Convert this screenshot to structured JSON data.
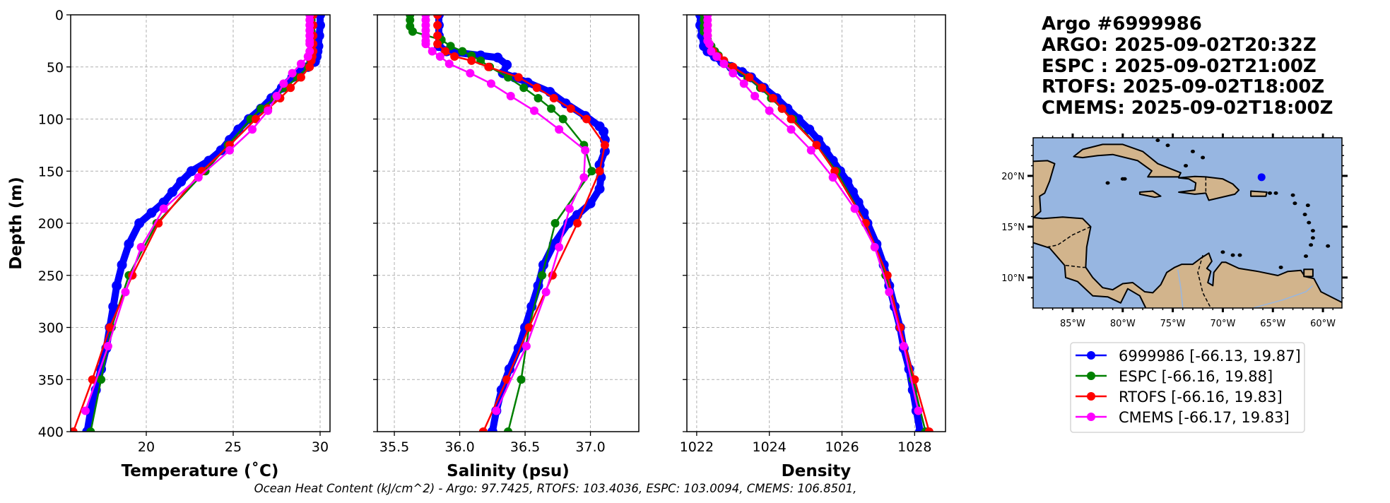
{
  "title": {
    "lines": [
      "Argo #6999986",
      "ARGO: 2025-09-02T20:32Z",
      "ESPC : 2025-09-02T21:00Z",
      "RTOFS: 2025-09-02T18:00Z",
      "CMEMS: 2025-09-02T18:00Z"
    ]
  },
  "caption": "Ocean Heat Content (kJ/cm^2) - Argo: 97.7425,  RTOFS: 103.4036,  ESPC: 103.0094,  CMEMS: 106.8501,",
  "colors": {
    "argo": "#0000ff",
    "espc": "#008000",
    "rtofs": "#ff0000",
    "cmems": "#ff00ff",
    "ocean": "#97b6e1",
    "land": "#d2b48c",
    "grid": "#b0b0b0"
  },
  "legend": {
    "placement": "below-map",
    "items": [
      {
        "label": "6999986 [-66.13, 19.87]",
        "series": "argo"
      },
      {
        "label": "ESPC [-66.16, 19.88]",
        "series": "espc"
      },
      {
        "label": "RTOFS [-66.16, 19.83]",
        "series": "rtofs"
      },
      {
        "label": "CMEMS [-66.17, 19.83]",
        "series": "cmems"
      }
    ]
  },
  "map": {
    "lon_range": [
      -88.95,
      -58.1
    ],
    "lat_range": [
      7.0,
      23.75
    ],
    "lon_ticks": [
      -85,
      -80,
      -75,
      -70,
      -65,
      -60
    ],
    "lon_tick_labels": [
      "85°W",
      "80°W",
      "75°W",
      "70°W",
      "65°W",
      "60°W"
    ],
    "lat_ticks": [
      10,
      15,
      20
    ],
    "lat_tick_labels": [
      "10°N",
      "15°N",
      "20°N"
    ],
    "float_position": {
      "lon": -66.13,
      "lat": 19.87
    }
  },
  "chart_data": [
    {
      "type": "line",
      "xlabel": "Temperature (˚C)",
      "ylabel": "Depth (m)",
      "xlim": [
        15.65,
        30.57
      ],
      "ylim": [
        400,
        0
      ],
      "xticks": [
        20,
        25,
        30
      ],
      "xtick_labels": [
        "20",
        "25",
        "30"
      ],
      "yticks": [
        0,
        50,
        100,
        150,
        200,
        250,
        300,
        350,
        400
      ],
      "ytick_labels": [
        "0",
        "50",
        "100",
        "150",
        "200",
        "250",
        "300",
        "350",
        "400"
      ],
      "grid": true,
      "series": [
        {
          "name": "argo",
          "depth": [
            0,
            10,
            20,
            30,
            35,
            40,
            45,
            50,
            55,
            60,
            70,
            80,
            90,
            100,
            110,
            120,
            130,
            140,
            150,
            160,
            170,
            180,
            190,
            200,
            220,
            240,
            260,
            280,
            300,
            320,
            340,
            360,
            380,
            400
          ],
          "values": [
            30.0,
            30.0,
            29.95,
            29.9,
            29.85,
            29.8,
            29.7,
            29.3,
            28.8,
            28.4,
            27.8,
            27.2,
            26.6,
            25.9,
            25.3,
            24.8,
            24.3,
            23.6,
            22.6,
            22.0,
            21.5,
            21.0,
            20.3,
            19.6,
            19.0,
            18.6,
            18.3,
            18.1,
            17.9,
            17.7,
            17.4,
            17.1,
            16.8,
            16.6
          ]
        },
        {
          "name": "espc",
          "depth": [
            0,
            5,
            11,
            16,
            24,
            30,
            35,
            39,
            44,
            50,
            60,
            70,
            80,
            90,
            100,
            125,
            150,
            200,
            250,
            300,
            350,
            400
          ],
          "values": [
            29.5,
            29.5,
            29.5,
            29.5,
            29.5,
            29.5,
            29.5,
            29.5,
            29.45,
            29.3,
            28.7,
            28.0,
            27.4,
            26.6,
            26.0,
            24.7,
            23.4,
            20.6,
            19.0,
            18.0,
            17.4,
            16.8
          ]
        },
        {
          "name": "rtofs",
          "depth": [
            0,
            10,
            20,
            28,
            35,
            40,
            44,
            50,
            60,
            70,
            80,
            90,
            100,
            125,
            150,
            200,
            250,
            300,
            350,
            400
          ],
          "values": [
            29.6,
            29.6,
            29.6,
            29.6,
            29.6,
            29.55,
            29.5,
            29.4,
            28.9,
            28.3,
            27.7,
            27.0,
            26.3,
            24.8,
            23.2,
            20.7,
            19.2,
            17.9,
            16.9,
            15.8
          ]
        },
        {
          "name": "cmems",
          "depth": [
            0,
            5,
            10,
            15,
            20,
            25,
            28,
            35,
            40,
            47,
            56,
            66,
            78,
            92,
            110,
            130,
            156,
            186,
            223,
            266,
            318,
            380
          ],
          "values": [
            29.4,
            29.4,
            29.4,
            29.4,
            29.4,
            29.4,
            29.4,
            29.4,
            29.3,
            28.9,
            28.4,
            27.9,
            27.5,
            27.0,
            26.1,
            24.8,
            23.0,
            21.0,
            19.7,
            18.8,
            17.8,
            16.5
          ]
        }
      ]
    },
    {
      "type": "line",
      "xlabel": "Salinity (psu)",
      "xlim": [
        35.37,
        37.37
      ],
      "ylim": [
        400,
        0
      ],
      "xticks": [
        35.5,
        36.0,
        36.5,
        37.0
      ],
      "xtick_labels": [
        "35.5",
        "36.0",
        "36.5",
        "37.0"
      ],
      "yticks": [
        0,
        50,
        100,
        150,
        200,
        250,
        300,
        350,
        400
      ],
      "grid": true,
      "series": [
        {
          "name": "argo",
          "depth": [
            0,
            10,
            20,
            30,
            35,
            39,
            41,
            48,
            56,
            60,
            65,
            74,
            85,
            97,
            107,
            112,
            120,
            131,
            144,
            156,
            167,
            181,
            192,
            200,
            220,
            240,
            260,
            280,
            300,
            320,
            340,
            360,
            380,
            400
          ],
          "values": [
            35.84,
            35.84,
            35.84,
            35.84,
            35.9,
            36.16,
            36.29,
            36.36,
            36.33,
            36.42,
            36.52,
            36.69,
            36.81,
            36.96,
            37.07,
            37.1,
            37.11,
            37.11,
            37.07,
            37.08,
            37.07,
            37.0,
            36.9,
            36.83,
            36.72,
            36.64,
            36.6,
            36.55,
            36.5,
            36.45,
            36.38,
            36.32,
            36.28,
            36.25
          ]
        },
        {
          "name": "espc",
          "depth": [
            0,
            5,
            11,
            16,
            24,
            30,
            35,
            39,
            44,
            50,
            60,
            70,
            80,
            90,
            100,
            125,
            150,
            200,
            250,
            300,
            350,
            400
          ],
          "values": [
            35.62,
            35.62,
            35.62,
            35.64,
            35.86,
            35.93,
            36.02,
            36.09,
            36.16,
            36.23,
            36.37,
            36.49,
            36.6,
            36.7,
            36.79,
            36.95,
            37.01,
            36.73,
            36.63,
            36.53,
            36.47,
            36.37
          ]
        },
        {
          "name": "rtofs",
          "depth": [
            0,
            10,
            20,
            28,
            35,
            40,
            44,
            50,
            60,
            70,
            80,
            90,
            100,
            125,
            150,
            200,
            250,
            300,
            350,
            400
          ],
          "values": [
            35.83,
            35.83,
            35.83,
            35.83,
            35.89,
            35.96,
            36.09,
            36.22,
            36.45,
            36.59,
            36.72,
            36.85,
            36.97,
            37.11,
            37.07,
            36.9,
            36.71,
            36.53,
            36.36,
            36.18
          ]
        },
        {
          "name": "cmems",
          "depth": [
            0,
            5,
            10,
            15,
            20,
            25,
            28,
            35,
            40,
            47,
            56,
            66,
            78,
            92,
            110,
            130,
            156,
            186,
            223,
            266,
            318,
            380
          ],
          "values": [
            35.74,
            35.74,
            35.74,
            35.74,
            35.74,
            35.74,
            35.74,
            35.79,
            35.85,
            35.92,
            36.08,
            36.24,
            36.39,
            36.57,
            36.76,
            36.96,
            36.95,
            36.84,
            36.76,
            36.66,
            36.51,
            36.28
          ]
        }
      ]
    },
    {
      "type": "line",
      "xlabel": "Density",
      "xlim": [
        1021.73,
        1028.85
      ],
      "ylim": [
        400,
        0
      ],
      "xticks": [
        1022,
        1024,
        1026,
        1028
      ],
      "xtick_labels": [
        "1022",
        "1024",
        "1026",
        "1028"
      ],
      "yticks": [
        0,
        50,
        100,
        150,
        200,
        250,
        300,
        350,
        400
      ],
      "grid": true,
      "series": [
        {
          "name": "argo",
          "depth": [
            0,
            10,
            20,
            30,
            35,
            40,
            45,
            50,
            55,
            60,
            70,
            80,
            90,
            100,
            110,
            120,
            130,
            140,
            150,
            160,
            170,
            180,
            190,
            200,
            220,
            240,
            260,
            280,
            300,
            320,
            340,
            360,
            380,
            400
          ],
          "values": [
            1022.1,
            1022.1,
            1022.15,
            1022.2,
            1022.3,
            1022.5,
            1022.7,
            1022.95,
            1023.25,
            1023.5,
            1023.85,
            1024.2,
            1024.5,
            1024.8,
            1025.1,
            1025.35,
            1025.55,
            1025.75,
            1025.95,
            1026.15,
            1026.3,
            1026.45,
            1026.6,
            1026.7,
            1026.95,
            1027.15,
            1027.3,
            1027.45,
            1027.6,
            1027.7,
            1027.85,
            1027.95,
            1028.05,
            1028.15
          ]
        },
        {
          "name": "espc",
          "depth": [
            0,
            5,
            11,
            16,
            24,
            30,
            35,
            39,
            44,
            50,
            60,
            70,
            80,
            90,
            100,
            125,
            150,
            200,
            250,
            300,
            350,
            400
          ],
          "values": [
            1022.2,
            1022.2,
            1022.2,
            1022.2,
            1022.3,
            1022.4,
            1022.5,
            1022.6,
            1022.75,
            1022.95,
            1023.4,
            1023.75,
            1024.05,
            1024.35,
            1024.65,
            1025.3,
            1025.85,
            1026.65,
            1027.2,
            1027.6,
            1027.95,
            1028.3
          ]
        },
        {
          "name": "rtofs",
          "depth": [
            0,
            10,
            20,
            28,
            35,
            40,
            44,
            50,
            60,
            70,
            80,
            90,
            100,
            125,
            150,
            200,
            250,
            300,
            350,
            400
          ],
          "values": [
            1022.3,
            1022.3,
            1022.3,
            1022.35,
            1022.45,
            1022.6,
            1022.75,
            1023.0,
            1023.45,
            1023.8,
            1024.1,
            1024.35,
            1024.6,
            1025.3,
            1025.8,
            1026.65,
            1027.25,
            1027.6,
            1028.0,
            1028.4
          ]
        },
        {
          "name": "cmems",
          "depth": [
            0,
            5,
            10,
            15,
            20,
            25,
            28,
            35,
            40,
            47,
            56,
            66,
            78,
            92,
            110,
            130,
            156,
            186,
            223,
            266,
            318,
            380
          ],
          "values": [
            1022.3,
            1022.3,
            1022.3,
            1022.3,
            1022.3,
            1022.3,
            1022.35,
            1022.4,
            1022.55,
            1022.75,
            1023.0,
            1023.3,
            1023.6,
            1024.0,
            1024.6,
            1025.15,
            1025.75,
            1026.35,
            1026.9,
            1027.3,
            1027.7,
            1028.1
          ]
        }
      ]
    }
  ]
}
